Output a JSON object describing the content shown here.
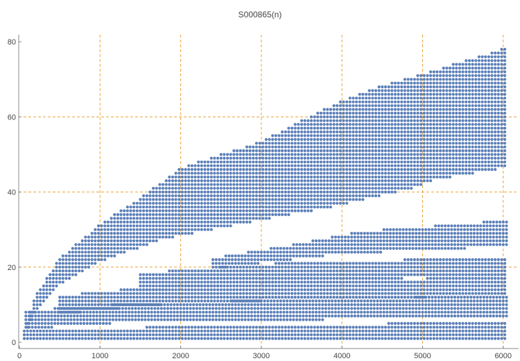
{
  "chart_data": {
    "type": "scatter",
    "title": "S000865(n)",
    "xlabel": "",
    "ylabel": "",
    "xlim": [
      0,
      6100
    ],
    "ylim": [
      0,
      80
    ],
    "x_ticks": [
      0,
      1000,
      2000,
      3000,
      4000,
      5000,
      6000
    ],
    "y_ticks": [
      0,
      20,
      40,
      60,
      80
    ],
    "x_gridlines": [
      1000,
      2000,
      3000,
      4000,
      5000,
      6000
    ],
    "y_gridlines": [
      20,
      40,
      60
    ],
    "grid": true,
    "colors": {
      "points": "#5b7fb8",
      "grid": "#e8a33a",
      "axis": "#888888"
    },
    "series": [
      {
        "bands": [
          {
            "x_start": 60,
            "x_end": 6050,
            "x_step": 40,
            "y_low": [
              [
                60,
                1
              ],
              [
                6050,
                1
              ]
            ],
            "y_high": [
              [
                60,
                3
              ],
              [
                6050,
                5
              ]
            ]
          },
          {
            "x_start": 80,
            "x_end": 6050,
            "x_step": 40,
            "y_low": [
              [
                80,
                4
              ],
              [
                1500,
                6
              ],
              [
                6050,
                7
              ]
            ],
            "y_high": [
              [
                80,
                8
              ],
              [
                1500,
                10
              ],
              [
                6050,
                12
              ]
            ]
          },
          {
            "x_start": 500,
            "x_end": 6050,
            "x_step": 40,
            "y_low": [
              [
                500,
                8
              ],
              [
                2000,
                11
              ],
              [
                6050,
                13
              ]
            ],
            "y_high": [
              [
                500,
                12
              ],
              [
                2000,
                15
              ],
              [
                6050,
                17
              ]
            ]
          },
          {
            "x_start": 1500,
            "x_end": 6050,
            "x_step": 40,
            "y_low": [
              [
                1500,
                14
              ],
              [
                3500,
                17
              ],
              [
                6050,
                18
              ]
            ],
            "y_high": [
              [
                1500,
                18
              ],
              [
                3500,
                21
              ],
              [
                6050,
                22
              ]
            ]
          },
          {
            "x_start": 2400,
            "x_end": 6050,
            "x_step": 40,
            "y_low": [
              [
                2400,
                20
              ],
              [
                4000,
                24
              ],
              [
                6050,
                26
              ]
            ],
            "y_high": [
              [
                2400,
                22
              ],
              [
                3500,
                26
              ],
              [
                4200,
                29
              ],
              [
                6050,
                32
              ]
            ]
          },
          {
            "x_start": 60,
            "x_end": 6050,
            "x_step": 40,
            "y_low": [
              [
                60,
                2
              ],
              [
                200,
                9
              ],
              [
                500,
                16
              ],
              [
                1000,
                22
              ],
              [
                1800,
                28
              ],
              [
                3000,
                33
              ],
              [
                4000,
                37
              ],
              [
                4800,
                41
              ],
              [
                5200,
                44
              ],
              [
                6050,
                47
              ]
            ],
            "y_high": [
              [
                60,
                2
              ],
              [
                200,
                12
              ],
              [
                500,
                22
              ],
              [
                1000,
                31
              ],
              [
                1500,
                38
              ],
              [
                2000,
                46
              ],
              [
                3000,
                53
              ],
              [
                4000,
                64
              ],
              [
                4500,
                68
              ],
              [
                5000,
                71
              ],
              [
                6050,
                78
              ]
            ]
          }
        ]
      }
    ]
  }
}
